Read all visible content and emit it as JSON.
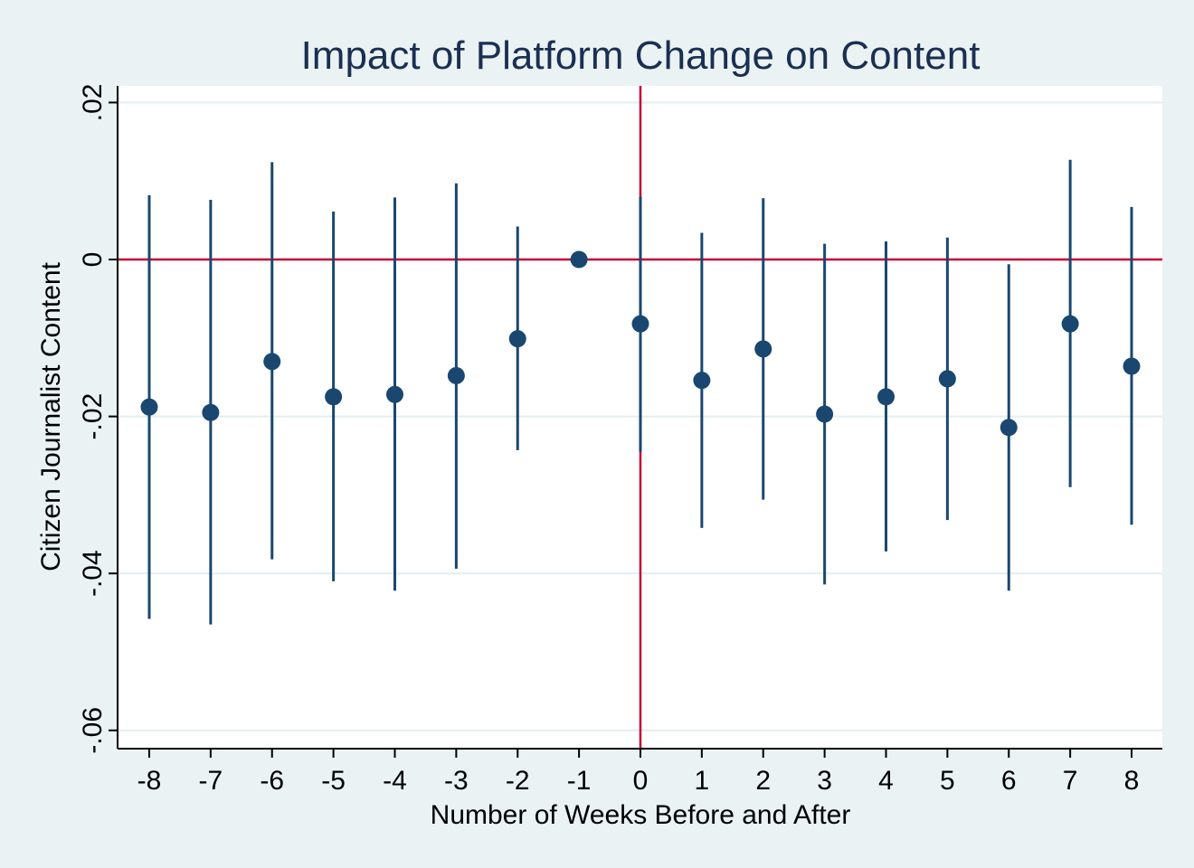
{
  "colors": {
    "background": "#eaf2f3",
    "plot_background": "#ffffff",
    "gridline": "#e4eef0",
    "marker": "#1a476f",
    "reference_line": "#c10534",
    "title": "#1a2f52"
  },
  "chart_data": {
    "type": "scatter",
    "subtype": "coefficient plot with confidence intervals",
    "title": "Impact of Platform Change on Content",
    "xlabel": "Number of Weeks Before and After",
    "ylabel": "Citizen Journalist Content",
    "x": [
      -8,
      -7,
      -6,
      -5,
      -4,
      -3,
      -2,
      -1,
      0,
      1,
      2,
      3,
      4,
      5,
      6,
      7,
      8
    ],
    "estimate": [
      -0.0188,
      -0.0195,
      -0.013,
      -0.0175,
      -0.0172,
      -0.0148,
      -0.0101,
      0.0,
      -0.0082,
      -0.0154,
      -0.0114,
      -0.0197,
      -0.0175,
      -0.0152,
      -0.0214,
      -0.0082,
      -0.0136
    ],
    "ci_lower": [
      -0.0458,
      -0.0465,
      -0.0382,
      -0.041,
      -0.0422,
      -0.0394,
      -0.0243,
      0.0,
      -0.0245,
      -0.0342,
      -0.0306,
      -0.0414,
      -0.0372,
      -0.0332,
      -0.0422,
      -0.029,
      -0.0338
    ],
    "ci_upper": [
      0.0082,
      0.0076,
      0.0124,
      0.0061,
      0.0079,
      0.0097,
      0.0042,
      0.0,
      0.008,
      0.0034,
      0.0078,
      0.002,
      0.0023,
      0.0028,
      -0.0006,
      0.0127,
      0.0067
    ],
    "xlim": [
      -8.5,
      8.5
    ],
    "ylim": [
      -0.0625,
      0.0225
    ],
    "y_ticks": [
      -0.06,
      -0.04,
      -0.02,
      0,
      0.02
    ],
    "y_tick_labels": [
      "-.06",
      "-.04",
      "-.02",
      "0",
      ".02"
    ],
    "x_ticks": [
      -8,
      -7,
      -6,
      -5,
      -4,
      -3,
      -2,
      -1,
      0,
      1,
      2,
      3,
      4,
      5,
      6,
      7,
      8
    ],
    "x_tick_labels": [
      "-8",
      "-7",
      "-6",
      "-5",
      "-4",
      "-3",
      "-2",
      "-1",
      "0",
      "1",
      "2",
      "3",
      "4",
      "5",
      "6",
      "7",
      "8"
    ],
    "reference_lines": {
      "horizontal_y": 0,
      "vertical_x": 0
    },
    "grid": "horizontal",
    "legend": "none"
  }
}
